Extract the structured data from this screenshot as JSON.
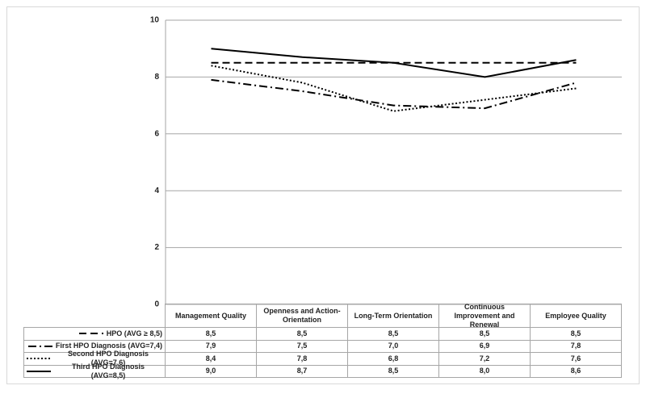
{
  "chart_data": {
    "type": "line",
    "categories": [
      "Management Quality",
      "Openness and Action-Orientation",
      "Long-Term Orientation",
      "Continuous Improvement and Renewal",
      "Employee Quality"
    ],
    "ylim": [
      0,
      10
    ],
    "yticks": [
      0,
      2,
      4,
      6,
      8,
      10
    ],
    "grid": true,
    "series": [
      {
        "name": "HPO (AVG ≥ 8,5)",
        "color": "#000000",
        "dash": "dashed",
        "values": [
          8.5,
          8.5,
          8.5,
          8.5,
          8.5
        ],
        "value_labels": [
          "8,5",
          "8,5",
          "8,5",
          "8,5",
          "8,5"
        ]
      },
      {
        "name": "First HPO Diagnosis (AVG=7,4)",
        "color": "#000000",
        "dash": "dashdot",
        "values": [
          7.9,
          7.5,
          7.0,
          6.9,
          7.8
        ],
        "value_labels": [
          "7,9",
          "7,5",
          "7,0",
          "6,9",
          "7,8"
        ]
      },
      {
        "name": "Second HPO Diagnosis (AVG=7,6)",
        "color": "#000000",
        "dash": "dotted",
        "values": [
          8.4,
          7.8,
          6.8,
          7.2,
          7.6
        ],
        "value_labels": [
          "8,4",
          "7,8",
          "6,8",
          "7,2",
          "7,6"
        ]
      },
      {
        "name": "Third HPO Diagnosis (AVG=8,5)",
        "color": "#000000",
        "dash": "solid",
        "values": [
          9.0,
          8.7,
          8.5,
          8.0,
          8.6
        ],
        "value_labels": [
          "9,0",
          "8,7",
          "8,5",
          "8,0",
          "8,6"
        ]
      }
    ]
  }
}
